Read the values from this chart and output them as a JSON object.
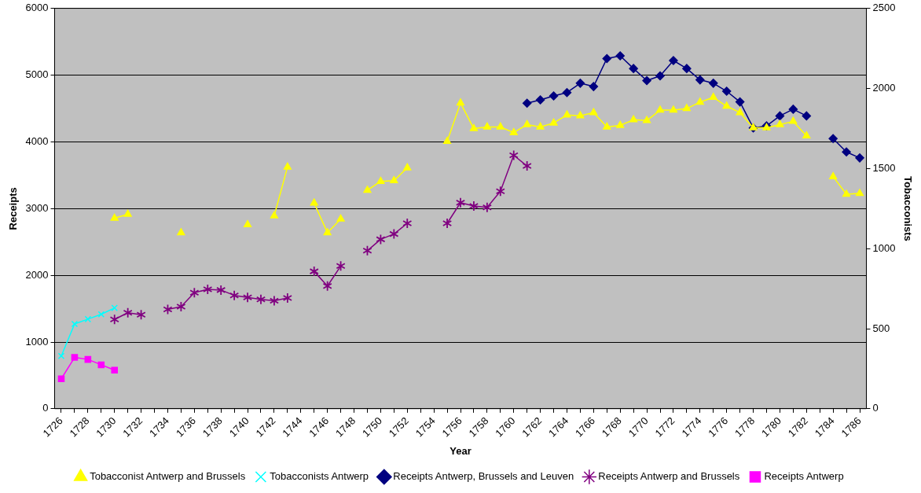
{
  "chart_data": {
    "type": "line",
    "xlabel": "Year",
    "ylabel": "Receipts",
    "y2label": "Tobacconists",
    "categories": [
      "1726",
      null,
      "1728",
      null,
      "1730",
      null,
      "1732",
      null,
      "1734",
      null,
      "1736",
      null,
      "1738",
      null,
      "1740",
      null,
      "1742",
      null,
      "1744",
      null,
      "1746",
      null,
      "1748",
      null,
      "1750",
      null,
      "1752",
      null,
      "1754",
      null,
      "1756",
      null,
      "1758",
      null,
      "1760",
      null,
      "1762",
      null,
      "1764",
      null,
      "1766",
      null,
      "1768",
      null,
      "1770",
      null,
      "1772",
      null,
      "1774",
      null,
      "1776",
      null,
      "1778",
      null,
      "1780",
      null,
      "1782",
      null,
      "1784",
      null,
      "1786"
    ],
    "ylim": [
      0,
      6000
    ],
    "yticks": [
      0,
      1000,
      2000,
      3000,
      4000,
      5000,
      6000
    ],
    "y2lim": [
      0,
      2500
    ],
    "y2ticks": [
      0,
      500,
      1000,
      1500,
      2000,
      2500
    ],
    "grid": "y",
    "legend": "bottom",
    "line_style": "solid",
    "series": [
      {
        "name": "Receipts Antwerp",
        "color": "#ff00ff",
        "marker": "square",
        "values": [
          450,
          770,
          740,
          660,
          580,
          null,
          null,
          null,
          null,
          null,
          null,
          null,
          null,
          null,
          null,
          null,
          null,
          null,
          null,
          null,
          null,
          null,
          null,
          null,
          null,
          null,
          null,
          null,
          null,
          null,
          null,
          null,
          null,
          null,
          null,
          null,
          null,
          null,
          null,
          null,
          null,
          null,
          null,
          null,
          null,
          null,
          null,
          null,
          null,
          null,
          null,
          null,
          null,
          null,
          null,
          null,
          null,
          null,
          null,
          null,
          null
        ]
      },
      {
        "name": "Receipts Antwerp and Brussels",
        "color": "#800080",
        "marker": "star",
        "values": [
          null,
          null,
          null,
          null,
          1340,
          1440,
          1410,
          null,
          1490,
          1530,
          1740,
          1790,
          1780,
          1700,
          1670,
          1640,
          1620,
          1660,
          null,
          2060,
          1840,
          2140,
          null,
          2370,
          2540,
          2620,
          2780,
          null,
          null,
          2780,
          3090,
          3040,
          3020,
          3260,
          3800,
          3640,
          null,
          null,
          null,
          null,
          null,
          null,
          null,
          null,
          null,
          null,
          null,
          null,
          null,
          null,
          null,
          null,
          null,
          null,
          null,
          null,
          null,
          null,
          null,
          null,
          null
        ]
      },
      {
        "name": "Receipts Antwerp, Brussels and Leuven",
        "color": "#000080",
        "marker": "diamond",
        "values": [
          null,
          null,
          null,
          null,
          null,
          null,
          null,
          null,
          null,
          null,
          null,
          null,
          null,
          null,
          null,
          null,
          null,
          null,
          null,
          null,
          null,
          null,
          null,
          null,
          null,
          null,
          null,
          null,
          null,
          null,
          null,
          null,
          null,
          null,
          null,
          4580,
          4630,
          4690,
          4740,
          4880,
          4830,
          5250,
          5290,
          5100,
          4920,
          4990,
          5220,
          5100,
          4930,
          4880,
          4760,
          4600,
          4210,
          4240,
          4390,
          4490,
          4390,
          null,
          4050,
          3850,
          3760
        ]
      },
      {
        "name": "Tobacconists Antwerp",
        "color": "#00ffff",
        "marker": "cross",
        "axis": "y2",
        "values": [
          330,
          530,
          560,
          590,
          630,
          null,
          null,
          null,
          null,
          null,
          null,
          null,
          null,
          null,
          null,
          null,
          null,
          null,
          null,
          null,
          null,
          null,
          null,
          null,
          null,
          null,
          null,
          null,
          null,
          null,
          null,
          null,
          null,
          null,
          null,
          null,
          null,
          null,
          null,
          null,
          null,
          null,
          null,
          null,
          null,
          null,
          null,
          null,
          null,
          null,
          null,
          null,
          null,
          null,
          null,
          null,
          null,
          null,
          null,
          null,
          null
        ]
      },
      {
        "name": "Tobacconist Antwerp and Brussels",
        "color": "#ffff00",
        "marker": "triangle",
        "axis": "y2",
        "values": [
          null,
          null,
          null,
          null,
          1190,
          1215,
          null,
          null,
          null,
          1100,
          null,
          null,
          null,
          null,
          1150,
          null,
          1205,
          1510,
          null,
          1285,
          1100,
          1185,
          null,
          1365,
          1420,
          1425,
          1505,
          null,
          null,
          1670,
          1910,
          1750,
          1760,
          1760,
          1725,
          1775,
          1760,
          1785,
          1835,
          1830,
          1850,
          1760,
          1770,
          1805,
          1800,
          1865,
          1865,
          1875,
          1915,
          1945,
          1890,
          1850,
          1755,
          1755,
          1775,
          1795,
          1705,
          null,
          1450,
          1340,
          1345
        ]
      }
    ]
  }
}
